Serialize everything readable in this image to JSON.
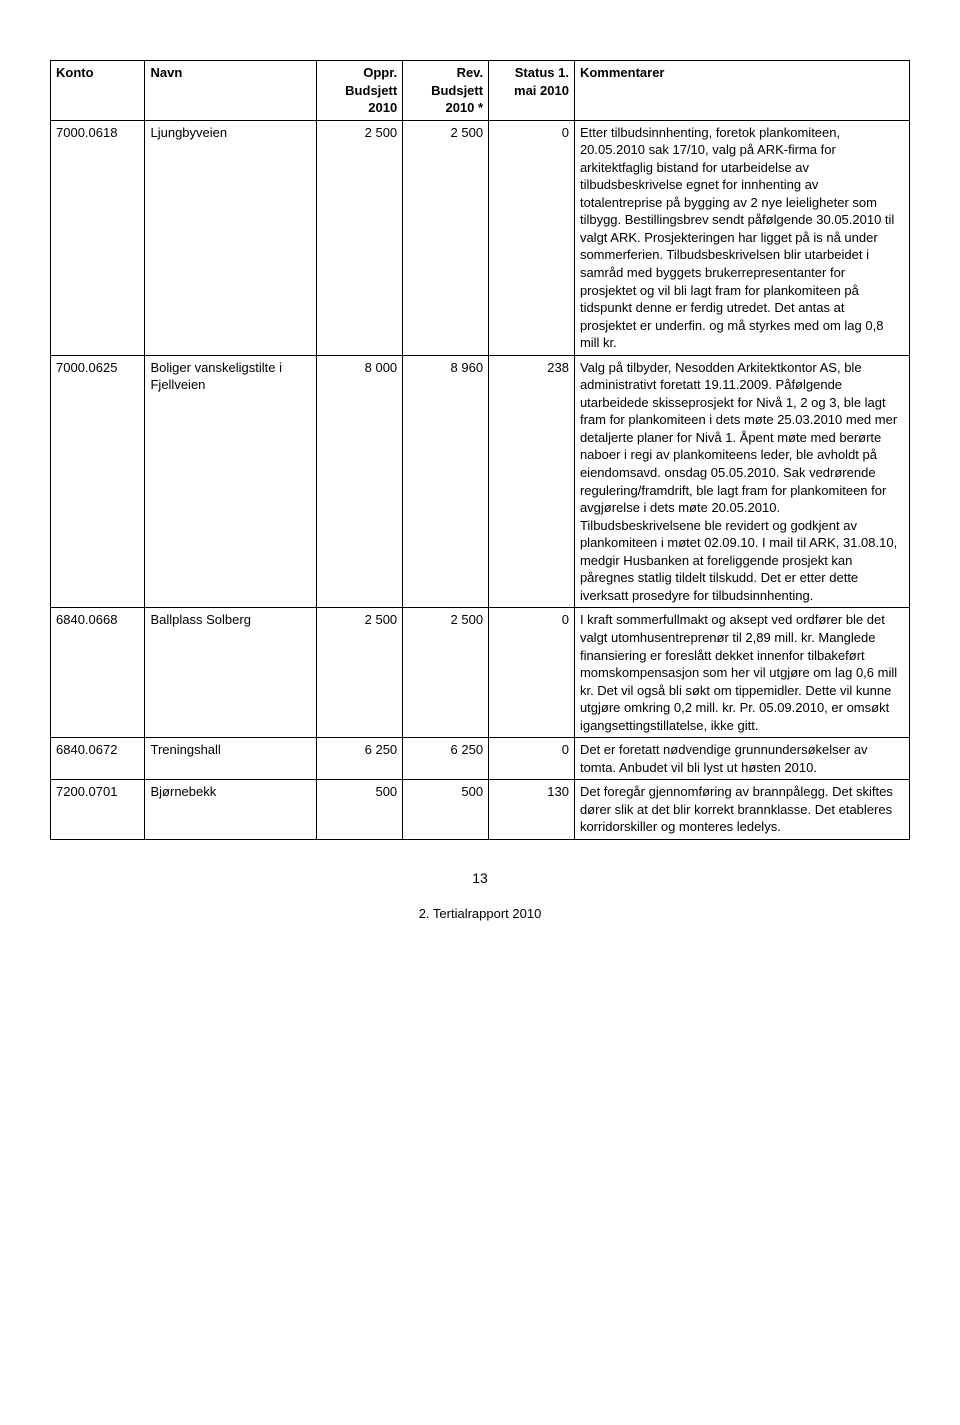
{
  "table": {
    "headers": {
      "konto": "Konto",
      "navn": "Navn",
      "oppr": "Oppr. Budsjett 2010",
      "rev": "Rev. Budsjett 2010 *",
      "status": "Status 1. mai 2010",
      "kommentarer": "Kommentarer"
    },
    "rows": [
      {
        "konto": "7000.0618",
        "navn": "Ljungbyveien",
        "oppr": "2 500",
        "rev": "2 500",
        "status": "0",
        "kommentarer": "Etter tilbudsinnhenting, foretok plankomiteen, 20.05.2010 sak 17/10, valg på ARK-firma for arkitektfaglig bistand for utarbeidelse av tilbudsbeskrivelse egnet for innhenting av totalentreprise på bygging av 2 nye leieligheter som tilbygg. Bestillingsbrev sendt påfølgende 30.05.2010 til valgt ARK. Prosjekteringen har ligget på is nå under sommerferien. Tilbudsbeskrivelsen blir utarbeidet i samråd med byggets brukerrepresentanter for prosjektet og vil bli lagt fram for plankomiteen på tidspunkt denne er ferdig utredet. Det antas at prosjektet er underfin. og må styrkes med om lag 0,8 mill kr."
      },
      {
        "konto": "7000.0625",
        "navn": "Boliger vanskeligstilte i Fjellveien",
        "oppr": "8 000",
        "rev": "8 960",
        "status": "238",
        "kommentarer": "Valg på tilbyder, Nesodden Arkitektkontor AS, ble administrativt foretatt 19.11.2009. Påfølgende utarbeidede skisseprosjekt for Nivå 1, 2 og 3, ble lagt fram for plankomiteen i dets møte 25.03.2010 med mer detaljerte planer for Nivå 1. Åpent møte med berørte naboer i regi av plankomiteens leder, ble avholdt på eiendomsavd. onsdag 05.05.2010. Sak vedrørende regulering/framdrift, ble lagt fram for plankomiteen for avgjørelse i dets møte 20.05.2010. Tilbudsbeskrivelsene ble revidert og godkjent av plankomiteen i møtet 02.09.10. I mail til ARK, 31.08.10, medgir Husbanken at foreliggende prosjekt kan påregnes statlig tildelt tilskudd. Det er etter dette iverksatt prosedyre for tilbudsinnhenting."
      },
      {
        "konto": "6840.0668",
        "navn": "Ballplass Solberg",
        "oppr": "2 500",
        "rev": "2 500",
        "status": "0",
        "kommentarer": "I kraft sommerfullmakt og aksept ved ordfører ble det valgt utomhusentreprenør til 2,89 mill. kr. Manglede finansiering er foreslått dekket innenfor tilbakeført momskompensasjon som her vil utgjøre om lag 0,6 mill kr. Det vil også bli søkt om tippemidler. Dette vil kunne utgjøre omkring 0,2 mill. kr. Pr. 05.09.2010, er omsøkt igangsettingstillatelse, ikke gitt."
      },
      {
        "konto": "6840.0672",
        "navn": "Treningshall",
        "oppr": "6 250",
        "rev": "6 250",
        "status": "0",
        "kommentarer": "Det er foretatt nødvendige grunnundersøkelser av tomta. Anbudet vil bli lyst ut høsten 2010."
      },
      {
        "konto": "7200.0701",
        "navn": "Bjørnebekk",
        "oppr": "500",
        "rev": "500",
        "status": "130",
        "kommentarer": "Det foregår gjennomføring av brannpålegg. Det skiftes dører slik at det blir korrekt brannklasse. Det etableres korridorskiller og monteres ledelys."
      }
    ]
  },
  "pageNumber": "13",
  "footer": "2. Tertialrapport 2010"
}
